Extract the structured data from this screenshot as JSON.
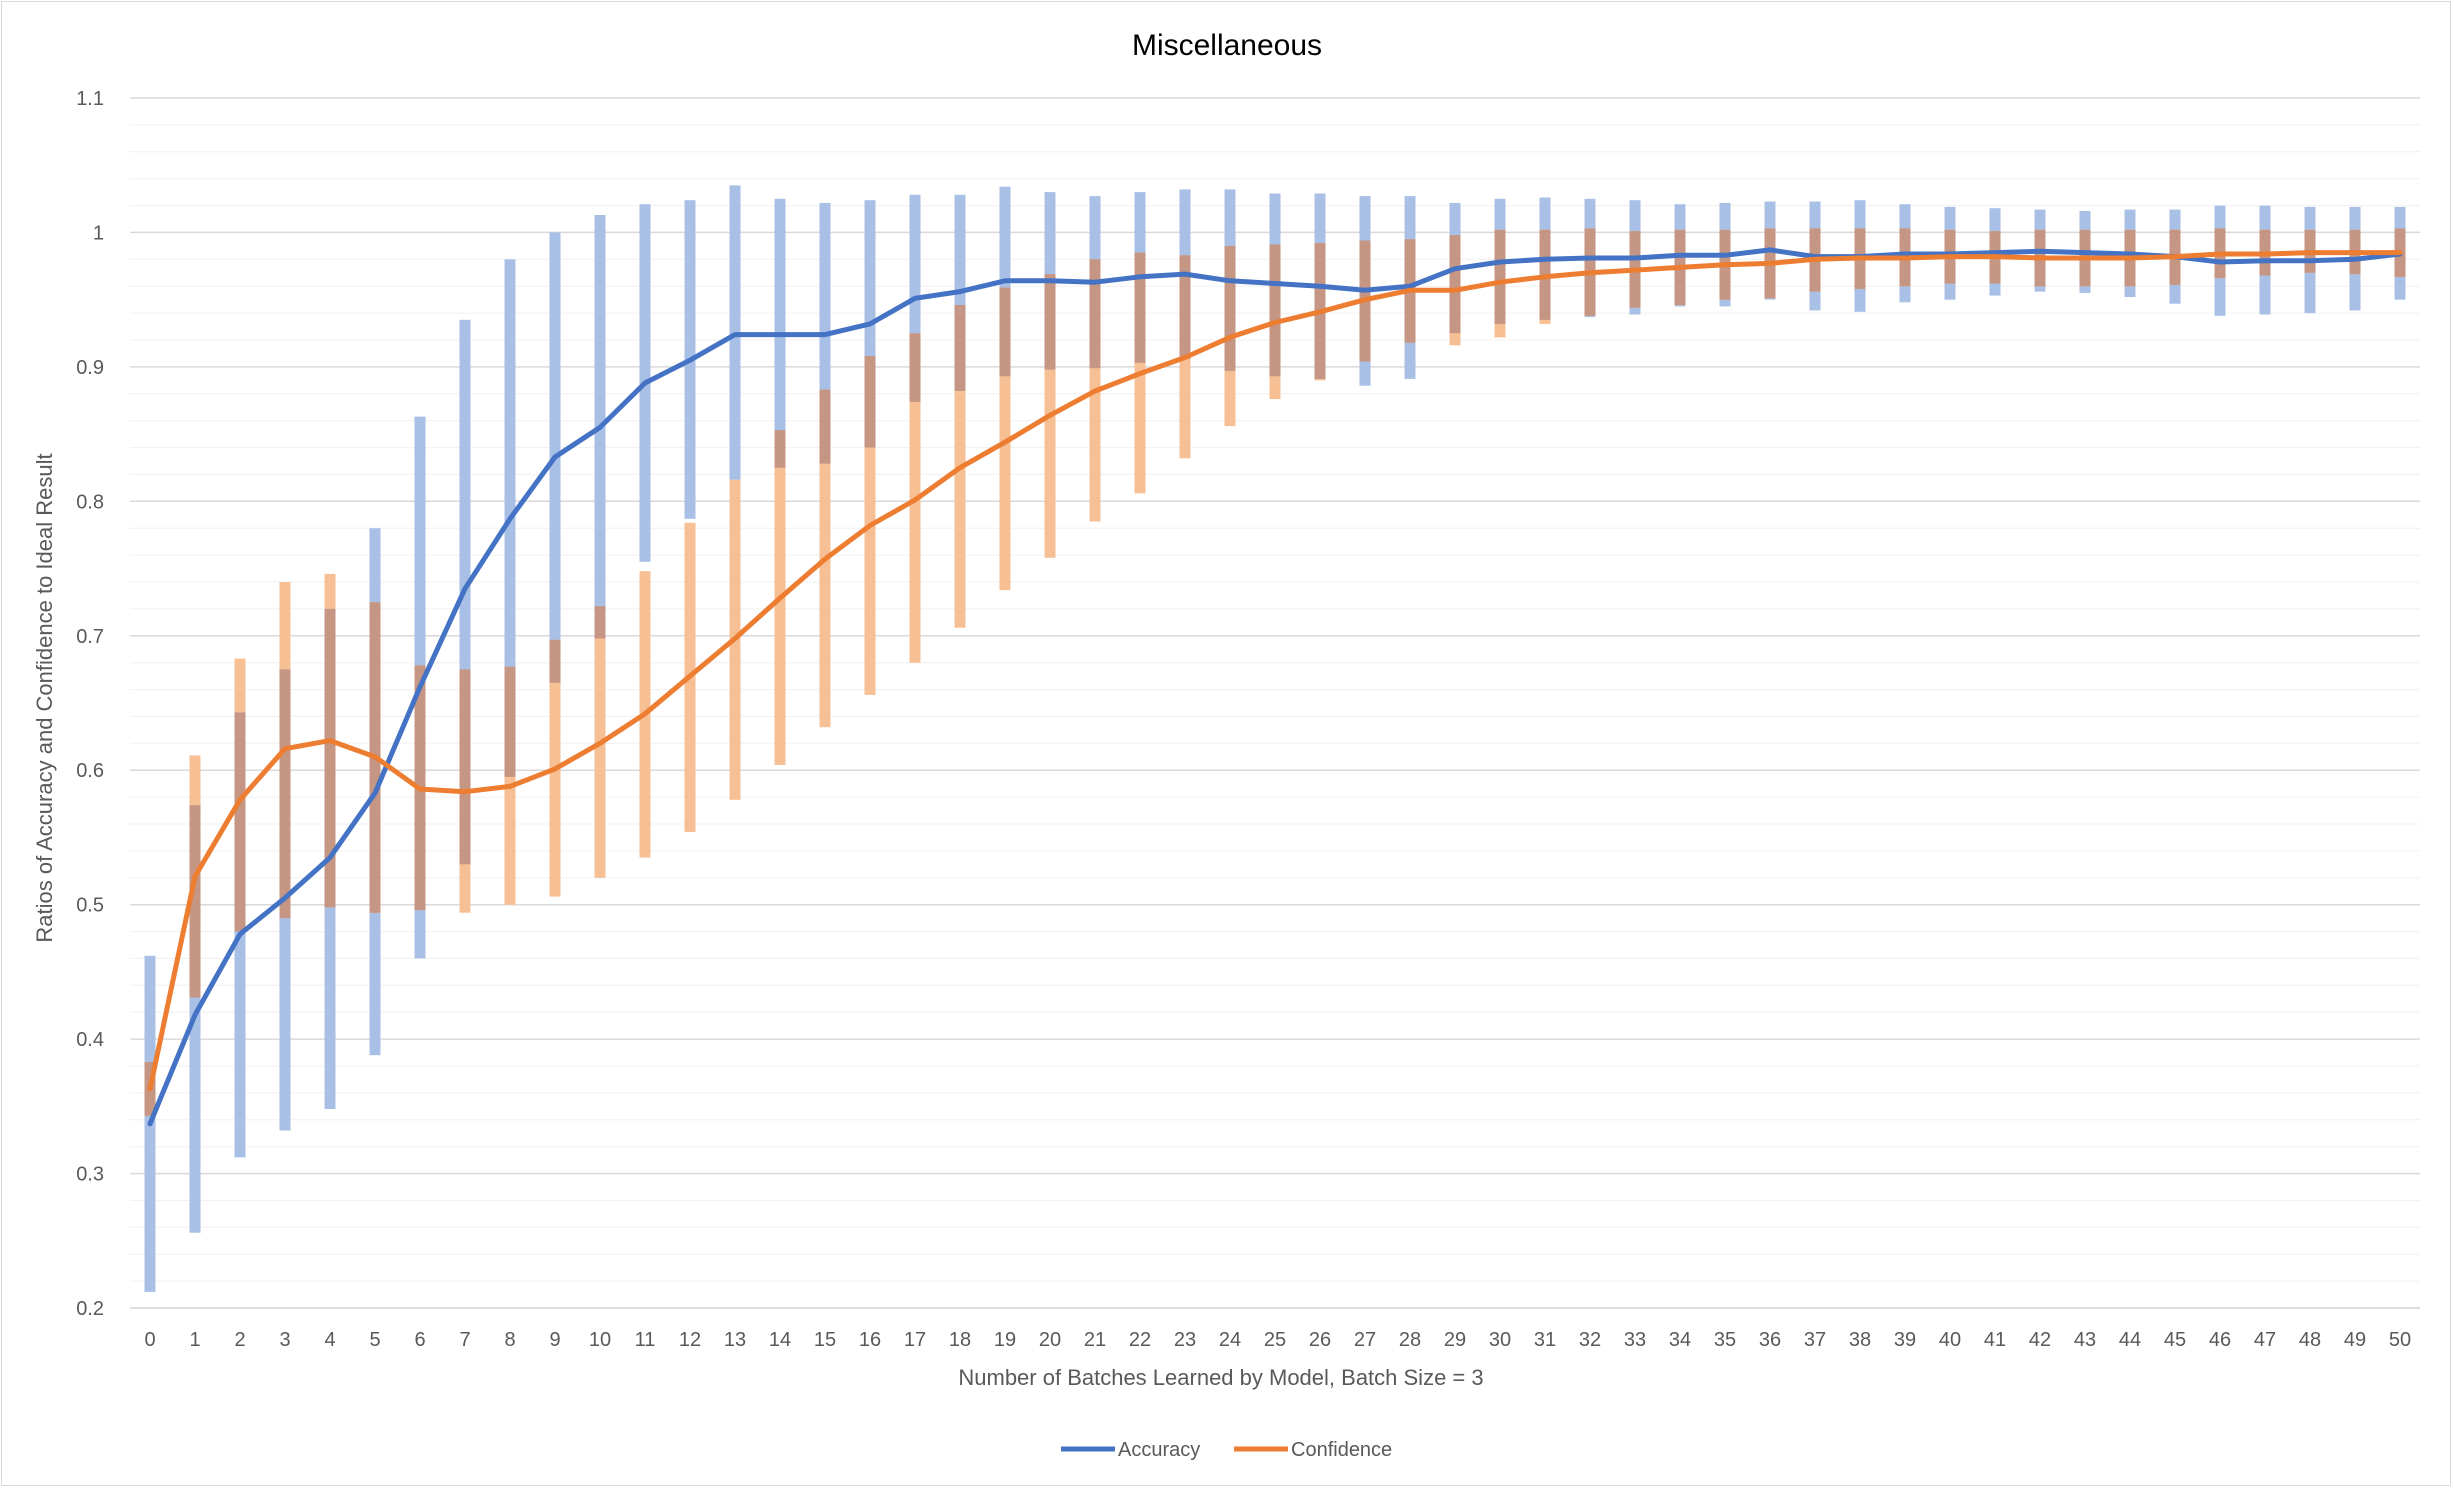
{
  "chart_data": {
    "type": "line",
    "title": "Miscellaneous",
    "xlabel": "Number of Batches Learned by Model, Batch Size = 3",
    "ylabel": "Ratios of Accuracy and Confidence to Ideal Result",
    "ylim": [
      0.2,
      1.1
    ],
    "y_ticks": [
      "0.2",
      "0.3",
      "0.4",
      "0.5",
      "0.6",
      "0.7",
      "0.8",
      "0.9",
      "1",
      "1.1"
    ],
    "x": [
      0,
      1,
      2,
      3,
      4,
      5,
      6,
      7,
      8,
      9,
      10,
      11,
      12,
      13,
      14,
      15,
      16,
      17,
      18,
      19,
      20,
      21,
      22,
      23,
      24,
      25,
      26,
      27,
      28,
      29,
      30,
      31,
      32,
      33,
      34,
      35,
      36,
      37,
      38,
      39,
      40,
      41,
      42,
      43,
      44,
      45,
      46,
      47,
      48,
      49,
      50
    ],
    "grid": "horizontal major and minor",
    "legend_position": "bottom",
    "colors": {
      "accuracy": "#4472c4",
      "confidence": "#ed7d31",
      "accuracy_band": "#a9c0e6",
      "confidence_band": "#f7bf94",
      "overlap_band": "#c49683"
    },
    "series": [
      {
        "name": "Accuracy",
        "values": [
          0.337,
          0.418,
          0.478,
          0.505,
          0.535,
          0.583,
          0.662,
          0.735,
          0.787,
          0.833,
          0.855,
          0.888,
          0.905,
          0.924,
          0.924,
          0.924,
          0.932,
          0.951,
          0.956,
          0.964,
          0.964,
          0.963,
          0.967,
          0.969,
          0.964,
          0.962,
          0.96,
          0.957,
          0.96,
          0.973,
          0.978,
          0.98,
          0.981,
          0.981,
          0.983,
          0.983,
          0.987,
          0.982,
          0.982,
          0.984,
          0.984,
          0.985,
          0.986,
          0.985,
          0.984,
          0.982,
          0.978,
          0.979,
          0.979,
          0.98,
          0.984
        ],
        "lower": [
          0.212,
          0.256,
          0.312,
          0.332,
          0.348,
          0.388,
          0.46,
          0.53,
          0.595,
          0.665,
          0.698,
          0.755,
          0.787,
          0.816,
          0.825,
          0.828,
          0.84,
          0.874,
          0.882,
          0.893,
          0.898,
          0.899,
          0.903,
          0.906,
          0.897,
          0.893,
          0.891,
          0.886,
          0.891,
          0.925,
          0.932,
          0.935,
          0.937,
          0.939,
          0.945,
          0.945,
          0.95,
          0.942,
          0.941,
          0.948,
          0.95,
          0.953,
          0.956,
          0.955,
          0.952,
          0.947,
          0.938,
          0.939,
          0.94,
          0.942,
          0.95
        ],
        "upper": [
          0.462,
          0.574,
          0.643,
          0.675,
          0.72,
          0.78,
          0.863,
          0.935,
          0.98,
          1.0,
          1.013,
          1.021,
          1.024,
          1.035,
          1.025,
          1.022,
          1.024,
          1.028,
          1.028,
          1.034,
          1.03,
          1.027,
          1.03,
          1.032,
          1.032,
          1.029,
          1.029,
          1.027,
          1.027,
          1.022,
          1.025,
          1.026,
          1.025,
          1.024,
          1.021,
          1.022,
          1.023,
          1.023,
          1.024,
          1.021,
          1.019,
          1.018,
          1.017,
          1.016,
          1.017,
          1.017,
          1.02,
          1.02,
          1.019,
          1.019,
          1.019
        ]
      },
      {
        "name": "Confidence",
        "values": [
          0.363,
          0.521,
          0.578,
          0.616,
          0.622,
          0.61,
          0.586,
          0.584,
          0.588,
          0.601,
          0.62,
          0.642,
          0.67,
          0.698,
          0.728,
          0.757,
          0.782,
          0.801,
          0.825,
          0.844,
          0.864,
          0.882,
          0.895,
          0.907,
          0.922,
          0.933,
          0.941,
          0.95,
          0.957,
          0.957,
          0.963,
          0.967,
          0.97,
          0.972,
          0.974,
          0.976,
          0.977,
          0.98,
          0.981,
          0.981,
          0.982,
          0.982,
          0.981,
          0.981,
          0.981,
          0.982,
          0.984,
          0.984,
          0.985,
          0.985,
          0.985
        ],
        "lower": [
          0.343,
          0.431,
          0.48,
          0.49,
          0.498,
          0.494,
          0.496,
          0.494,
          0.5,
          0.506,
          0.52,
          0.535,
          0.554,
          0.578,
          0.604,
          0.632,
          0.656,
          0.68,
          0.706,
          0.734,
          0.758,
          0.785,
          0.806,
          0.832,
          0.856,
          0.876,
          0.89,
          0.904,
          0.918,
          0.916,
          0.922,
          0.932,
          0.938,
          0.944,
          0.946,
          0.95,
          0.951,
          0.956,
          0.958,
          0.96,
          0.962,
          0.962,
          0.96,
          0.96,
          0.96,
          0.961,
          0.966,
          0.968,
          0.97,
          0.969,
          0.967
        ],
        "upper": [
          0.383,
          0.611,
          0.683,
          0.74,
          0.746,
          0.725,
          0.678,
          0.675,
          0.677,
          0.697,
          0.722,
          0.748,
          0.784,
          0.816,
          0.853,
          0.883,
          0.908,
          0.925,
          0.946,
          0.959,
          0.969,
          0.98,
          0.985,
          0.983,
          0.99,
          0.991,
          0.992,
          0.994,
          0.995,
          0.998,
          1.002,
          1.002,
          1.003,
          1.001,
          1.002,
          1.002,
          1.003,
          1.003,
          1.003,
          1.003,
          1.002,
          1.001,
          1.002,
          1.002,
          1.002,
          1.002,
          1.003,
          1.002,
          1.002,
          1.002,
          1.003
        ]
      }
    ]
  }
}
